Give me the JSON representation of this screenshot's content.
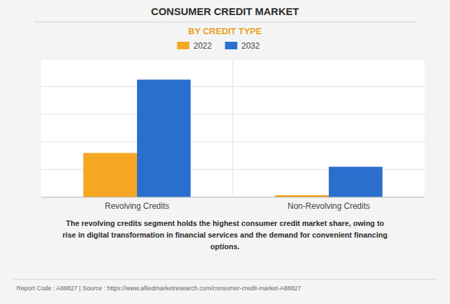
{
  "chart_data": {
    "type": "bar",
    "title": "CONSUMER CREDIT MARKET",
    "subtitle": "BY CREDIT TYPE",
    "categories": [
      "Revolving Credits",
      "Non-Revolving Credits"
    ],
    "series": [
      {
        "name": "2022",
        "color": "#f5a623",
        "values": [
          3.2,
          0.15
        ]
      },
      {
        "name": "2032",
        "color": "#2b6fce",
        "values": [
          8.5,
          2.2
        ]
      }
    ],
    "ylim": [
      0,
      10
    ],
    "yticks": [
      0,
      2,
      4,
      6,
      8,
      10
    ],
    "grid": true,
    "legend": "top",
    "tick_labels": "x",
    "annotations": [
      "The revolving credits segment holds the highest consumer credit market share, owing to\nrise in digital transformation in financial services and the demand for convenient financing\noptions.",
      "Report Code : A88827  |  Source : https://www.alliedmarketresearch.com/consumer-credit-market-A88827"
    ]
  }
}
